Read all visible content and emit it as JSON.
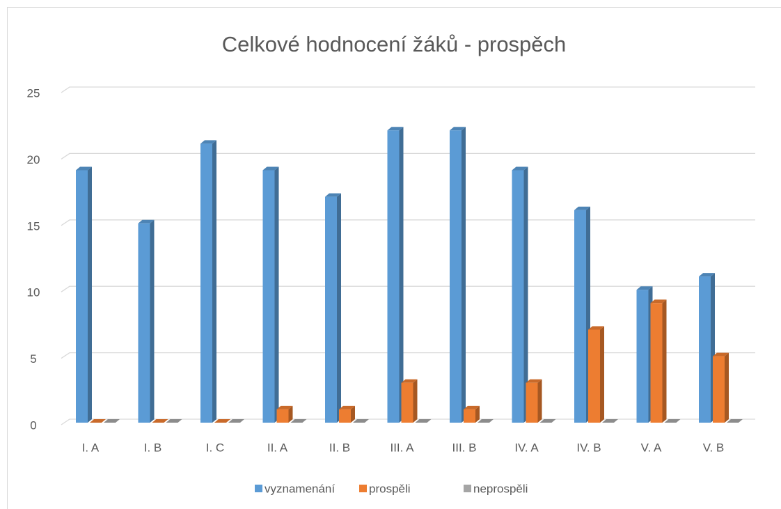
{
  "chart_data": {
    "type": "bar3d",
    "title": "Celkové hodnocení žáků - prospěch",
    "categories": [
      "I. A",
      "I. B",
      "I. C",
      "II. A",
      "II. B",
      "III. A",
      "III. B",
      "IV. A",
      "IV. B",
      "V. A",
      "V. B"
    ],
    "series": [
      {
        "name": "vyznamenání",
        "color": "#5b9bd5",
        "values": [
          19,
          15,
          21,
          19,
          17,
          22,
          22,
          19,
          16,
          10,
          11
        ]
      },
      {
        "name": "prospěli",
        "color": "#ed7d31",
        "values": [
          0,
          0,
          0,
          1,
          1,
          3,
          1,
          3,
          7,
          9,
          5
        ]
      },
      {
        "name": "neprospěli",
        "color": "#a5a5a5",
        "values": [
          0,
          0,
          0,
          0,
          0,
          0,
          0,
          0,
          0,
          0,
          0
        ]
      }
    ],
    "ylim": [
      0,
      25
    ],
    "yticks": [
      0,
      5,
      10,
      15,
      20,
      25
    ],
    "grid": true,
    "legend": "bottom"
  }
}
